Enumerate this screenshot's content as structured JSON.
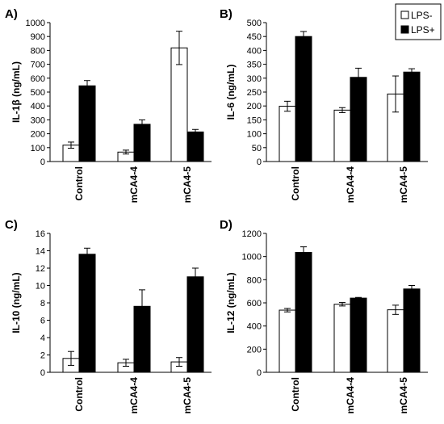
{
  "chart_data": [
    {
      "type": "bar",
      "panel_label": "A)",
      "ylabel": "IL-1β (ng/mL)",
      "ylim": [
        0,
        1000
      ],
      "yticks": [
        0,
        100,
        200,
        300,
        400,
        500,
        600,
        700,
        800,
        900,
        1000
      ],
      "categories": [
        "Control",
        "mCA4-4",
        "mCA4-5"
      ],
      "series": [
        {
          "name": "LPS-",
          "values": [
            118,
            68,
            818
          ],
          "errors": [
            22,
            14,
            120
          ]
        },
        {
          "name": "LPS+",
          "values": [
            545,
            268,
            213
          ],
          "errors": [
            38,
            32,
            18
          ]
        }
      ]
    },
    {
      "type": "bar",
      "panel_label": "B)",
      "ylabel": "IL-6 (ng/mL)",
      "ylim": [
        0,
        500
      ],
      "yticks": [
        0,
        50,
        100,
        150,
        200,
        250,
        300,
        350,
        400,
        450,
        500
      ],
      "categories": [
        "Control",
        "mCA4-4",
        "mCA4-5"
      ],
      "series": [
        {
          "name": "LPS-",
          "values": [
            199,
            185,
            243
          ],
          "errors": [
            18,
            9,
            65
          ]
        },
        {
          "name": "LPS+",
          "values": [
            450,
            303,
            322
          ],
          "errors": [
            18,
            33,
            12
          ]
        }
      ]
    },
    {
      "type": "bar",
      "panel_label": "C)",
      "ylabel": "IL-10 (ng/mL)",
      "ylim": [
        0,
        16
      ],
      "yticks": [
        0,
        2,
        4,
        6,
        8,
        10,
        12,
        14,
        16
      ],
      "categories": [
        "Control",
        "mCA4-4",
        "mCA4-5"
      ],
      "series": [
        {
          "name": "LPS-",
          "values": [
            1.6,
            1.1,
            1.2
          ],
          "errors": [
            0.8,
            0.4,
            0.5
          ]
        },
        {
          "name": "LPS+",
          "values": [
            13.6,
            7.6,
            11.0
          ],
          "errors": [
            0.7,
            1.9,
            1.0
          ]
        }
      ]
    },
    {
      "type": "bar",
      "panel_label": "D)",
      "ylabel": "IL-12 (ng/mL)",
      "ylim": [
        0,
        1200
      ],
      "yticks": [
        0,
        200,
        400,
        600,
        800,
        1000,
        1200
      ],
      "categories": [
        "Control",
        "mCA4-4",
        "mCA4-5"
      ],
      "series": [
        {
          "name": "LPS-",
          "values": [
            537,
            588,
            540
          ],
          "errors": [
            15,
            15,
            40
          ]
        },
        {
          "name": "LPS+",
          "values": [
            1036,
            641,
            720
          ],
          "errors": [
            48,
            6,
            30
          ]
        }
      ]
    }
  ],
  "legend": {
    "position": "top-right",
    "items": [
      "LPS-",
      "LPS+"
    ]
  },
  "colors": {
    "lps_minus_fill": "#ffffff",
    "lps_plus_fill": "#000000",
    "axis": "#000000",
    "text": "#000000"
  }
}
